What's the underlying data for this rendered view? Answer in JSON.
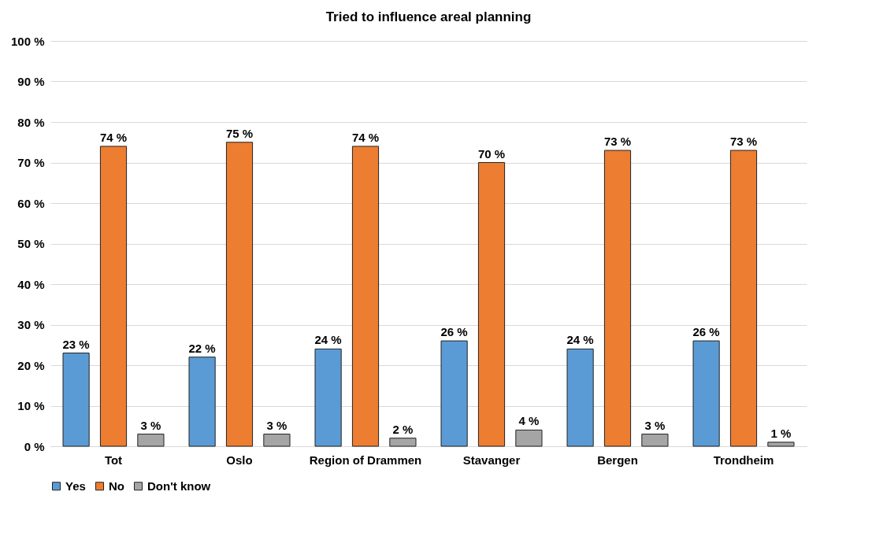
{
  "chart_data": {
    "type": "bar",
    "title": "Tried to influence areal planning",
    "categories": [
      "Tot",
      "Oslo",
      "Region of Drammen",
      "Stavanger",
      "Bergen",
      "Trondheim"
    ],
    "series": [
      {
        "name": "Yes",
        "color": "#5b9bd5",
        "values": [
          23,
          22,
          24,
          26,
          24,
          26
        ],
        "value_labels": [
          "23 %",
          "22 %",
          "24 %",
          "26 %",
          "24 %",
          "26 %"
        ]
      },
      {
        "name": "No",
        "color": "#ed7d31",
        "values": [
          74,
          75,
          74,
          70,
          73,
          73
        ],
        "value_labels": [
          "74 %",
          "75 %",
          "74 %",
          "70 %",
          "73 %",
          "73 %"
        ]
      },
      {
        "name": "Don't know",
        "color": "#a5a5a5",
        "values": [
          3,
          3,
          2,
          4,
          3,
          1
        ],
        "value_labels": [
          "3 %",
          "3 %",
          "2 %",
          "4 %",
          "3 %",
          "1 %"
        ]
      }
    ],
    "ylim": [
      0,
      100
    ],
    "yticks": [
      {
        "value": 0,
        "label": "0 %"
      },
      {
        "value": 10,
        "label": "10 %"
      },
      {
        "value": 20,
        "label": "20 %"
      },
      {
        "value": 30,
        "label": "30 %"
      },
      {
        "value": 40,
        "label": "40 %"
      },
      {
        "value": 50,
        "label": "50 %"
      },
      {
        "value": 60,
        "label": "60 %"
      },
      {
        "value": 70,
        "label": "70 %"
      },
      {
        "value": 80,
        "label": "80 %"
      },
      {
        "value": 90,
        "label": "90 %"
      },
      {
        "value": 100,
        "label": "100 %"
      }
    ],
    "grid": "y",
    "legend": "bottom"
  }
}
